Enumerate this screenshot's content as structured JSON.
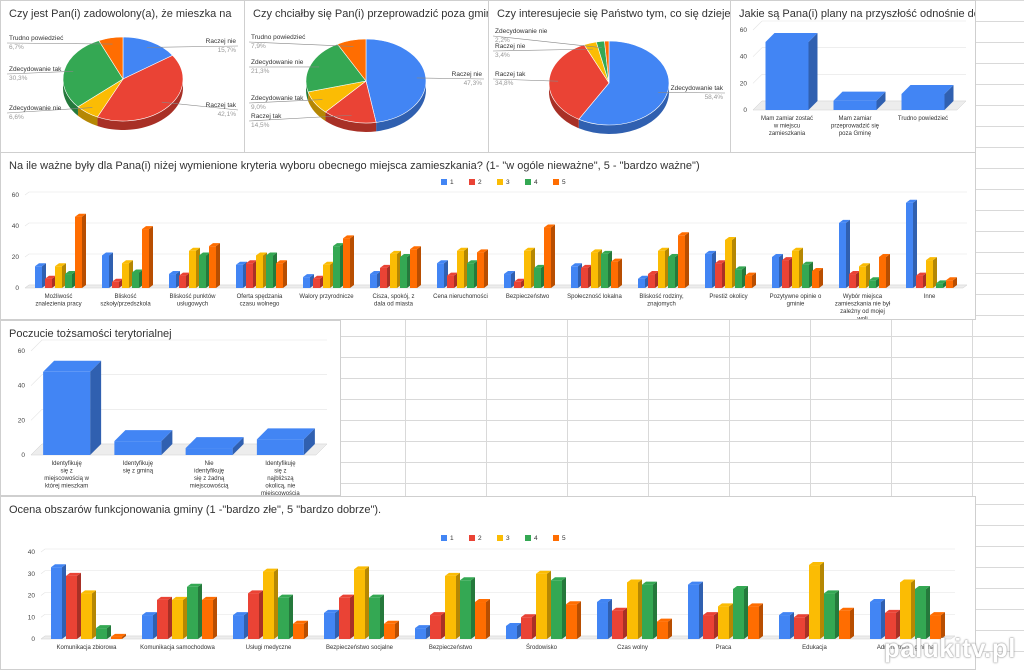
{
  "colors": {
    "c1": "#4285F4",
    "c2": "#EA4335",
    "c3": "#FBBC04",
    "c4": "#34A853",
    "c5": "#FF6D01"
  },
  "watermark": "palukitv.pl",
  "chart_data": [
    {
      "id": "pie1",
      "type": "pie",
      "title": "Czy jest Pan(i) zadowolony(a), że mieszka na",
      "slices": [
        {
          "label": "Raczej nie",
          "value": 15.7,
          "pct": "15,7%",
          "color": "#4285F4"
        },
        {
          "label": "Raczej tak",
          "value": 42.1,
          "pct": "42,1%",
          "color": "#EA4335"
        },
        {
          "label": "Zdecydowanie nie",
          "value": 6.6,
          "pct": "6,6%",
          "color": "#FBBC04"
        },
        {
          "label": "Zdecydowanie tak",
          "value": 30.3,
          "pct": "30,3%",
          "color": "#34A853"
        },
        {
          "label": "Trudno powiedzieć",
          "value": 6.7,
          "pct": "6,7%",
          "color": "#FF6D01"
        }
      ]
    },
    {
      "id": "pie2",
      "type": "pie",
      "title": "Czy chciałby się Pan(i) przeprowadzić poza gminę?",
      "slices": [
        {
          "label": "Raczej nie",
          "value": 47.3,
          "pct": "47,3%",
          "color": "#4285F4"
        },
        {
          "label": "Raczej tak",
          "value": 14.5,
          "pct": "14,5%",
          "color": "#EA4335"
        },
        {
          "label": "Zdecydowanie tak",
          "value": 9.0,
          "pct": "9,0%",
          "color": "#FBBC04"
        },
        {
          "label": "Zdecydowanie nie",
          "value": 21.3,
          "pct": "21,3%",
          "color": "#34A853"
        },
        {
          "label": "Trudno powiedzieć",
          "value": 7.9,
          "pct": "7,9%",
          "color": "#FF6D01"
        }
      ]
    },
    {
      "id": "pie3",
      "type": "pie",
      "title": "Czy interesujecie się Państwo tym, co się dzieje na",
      "slices": [
        {
          "label": "Zdecydowanie tak",
          "value": 58.4,
          "pct": "58,4%",
          "color": "#4285F4"
        },
        {
          "label": "Raczej tak",
          "value": 34.8,
          "pct": "34,8%",
          "color": "#EA4335"
        },
        {
          "label": "Raczej nie",
          "value": 3.4,
          "pct": "3,4%",
          "color": "#FBBC04"
        },
        {
          "label": "Zdecydowanie nie",
          "value": 2.2,
          "pct": "2,2%",
          "color": "#34A853"
        },
        {
          "label": "",
          "value": 1.2,
          "pct": "",
          "color": "#FF6D01"
        }
      ]
    },
    {
      "id": "bar1",
      "type": "bar",
      "title": "Jakie są Pana(i) plany na przyszłość odnośnie do",
      "categories": [
        "Mam zamiar zostać w miejscu zamieszkania",
        "Mam zamiar przeprowadzić się poza Gminę",
        "Trudno powiedzieć"
      ],
      "values": [
        51,
        7,
        12
      ],
      "yticks": [
        0,
        20,
        40,
        60
      ],
      "ylim": [
        0,
        60
      ],
      "color": "#4285F4"
    },
    {
      "id": "bar2",
      "type": "bar",
      "title": "Na ile ważne były dla Pana(i) niżej wymienione kryteria wyboru obecnego miejsca zamieszkania? (1- \"w ogóle nieważne\", 5 - \"bardzo ważne\")",
      "legend": [
        "1",
        "2",
        "3",
        "4",
        "5"
      ],
      "categories": [
        "Możliwość znalezienia pracy",
        "Bliskość szkoły/przedszkola",
        "Bliskość punktów usługowych",
        "Oferta spędzania czasu wolnego",
        "Walory przyrodnicze",
        "Cisza, spokój, z dala od miasta",
        "Cena nieruchomości",
        "Bezpieczeństwo",
        "Społeczność lokalna",
        "Bliskość rodziny, znajomych",
        "Prestiż okolicy",
        "Pozytywne opinie o gminie",
        "Wybór miejsca zamieszkania nie był zależny od mojej woli",
        "Inne"
      ],
      "series": [
        {
          "name": "1",
          "values": [
            14,
            21,
            9,
            15,
            7,
            9,
            16,
            9,
            14,
            6,
            22,
            20,
            42,
            55
          ]
        },
        {
          "name": "2",
          "values": [
            6,
            4,
            8,
            16,
            6,
            13,
            8,
            4,
            13,
            9,
            16,
            18,
            9,
            8
          ]
        },
        {
          "name": "3",
          "values": [
            14,
            16,
            24,
            21,
            15,
            22,
            24,
            24,
            23,
            24,
            31,
            24,
            14,
            18
          ]
        },
        {
          "name": "4",
          "values": [
            9,
            10,
            21,
            21,
            27,
            20,
            16,
            13,
            22,
            20,
            12,
            15,
            5,
            3
          ]
        },
        {
          "name": "5",
          "values": [
            46,
            38,
            27,
            16,
            32,
            25,
            23,
            39,
            17,
            34,
            8,
            11,
            20,
            5
          ]
        }
      ],
      "yticks": [
        0,
        20,
        40,
        60
      ],
      "ylim": [
        0,
        60
      ]
    },
    {
      "id": "bar3",
      "type": "bar",
      "title": "Poczucie tożsamości terytorialnej",
      "categories": [
        "Identyfikuję się z miejscowością w której mieszkam",
        "Identyfikuję się z gminą",
        "Nie identyfikuję się z żadną miejscowością",
        "Identyfikuję się z najbliższą okolicą, nie miejscowością"
      ],
      "values": [
        48,
        8,
        4,
        9
      ],
      "yticks": [
        0,
        20,
        40,
        60
      ],
      "ylim": [
        0,
        60
      ],
      "color": "#4285F4"
    },
    {
      "id": "bar4",
      "type": "bar",
      "title": "Ocena obszarów funkcjonowania gminy (1 -\"bardzo złe\", 5 \"bardzo dobrze\").",
      "legend": [
        "1",
        "2",
        "3",
        "4",
        "5"
      ],
      "categories": [
        "Komunikacja zbiorowa",
        "Komunikacja samochodowa",
        "Usługi medyczne",
        "Bezpieczeństwo socjalne",
        "Bezpieczeństwo",
        "Środowisko",
        "Czas wolny",
        "Praca",
        "Edukacja",
        "Administracja gminna"
      ],
      "series": [
        {
          "name": "1",
          "values": [
            33,
            11,
            11,
            12,
            5,
            6,
            17,
            25,
            11,
            17
          ]
        },
        {
          "name": "2",
          "values": [
            29,
            18,
            21,
            19,
            11,
            10,
            13,
            11,
            10,
            12
          ]
        },
        {
          "name": "3",
          "values": [
            21,
            18,
            31,
            32,
            29,
            30,
            26,
            15,
            34,
            26
          ]
        },
        {
          "name": "4",
          "values": [
            5,
            24,
            19,
            19,
            27,
            27,
            25,
            23,
            21,
            23
          ]
        },
        {
          "name": "5",
          "values": [
            1,
            18,
            7,
            7,
            17,
            16,
            8,
            15,
            13,
            11
          ]
        }
      ],
      "yticks": [
        0,
        10,
        20,
        30,
        40
      ],
      "ylim": [
        0,
        40
      ]
    }
  ]
}
